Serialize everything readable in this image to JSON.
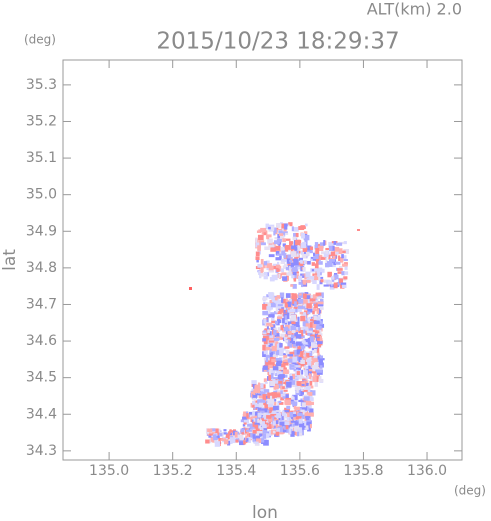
{
  "chart_data": {
    "type": "image",
    "title": "2015/10/23 18:29:37",
    "subtitle": "ALT(km) 2.0",
    "xlabel": "lon",
    "ylabel": "lat",
    "xunit": "(deg)",
    "yunit": "(deg)",
    "xlim": [
      134.855,
      136.11
    ],
    "ylim": [
      34.275,
      35.368
    ],
    "xticks": [
      {
        "value": 135,
        "label": "135.0"
      },
      135.2,
      135.4,
      135.6,
      135.8,
      {
        "value": 136,
        "label": "136.0"
      }
    ],
    "yticks": [
      34.3,
      34.4,
      34.5,
      34.6,
      34.7,
      34.8,
      34.9,
      {
        "value": 35,
        "label": "35.0"
      },
      35.1,
      35.2,
      35.3
    ]
  }
}
